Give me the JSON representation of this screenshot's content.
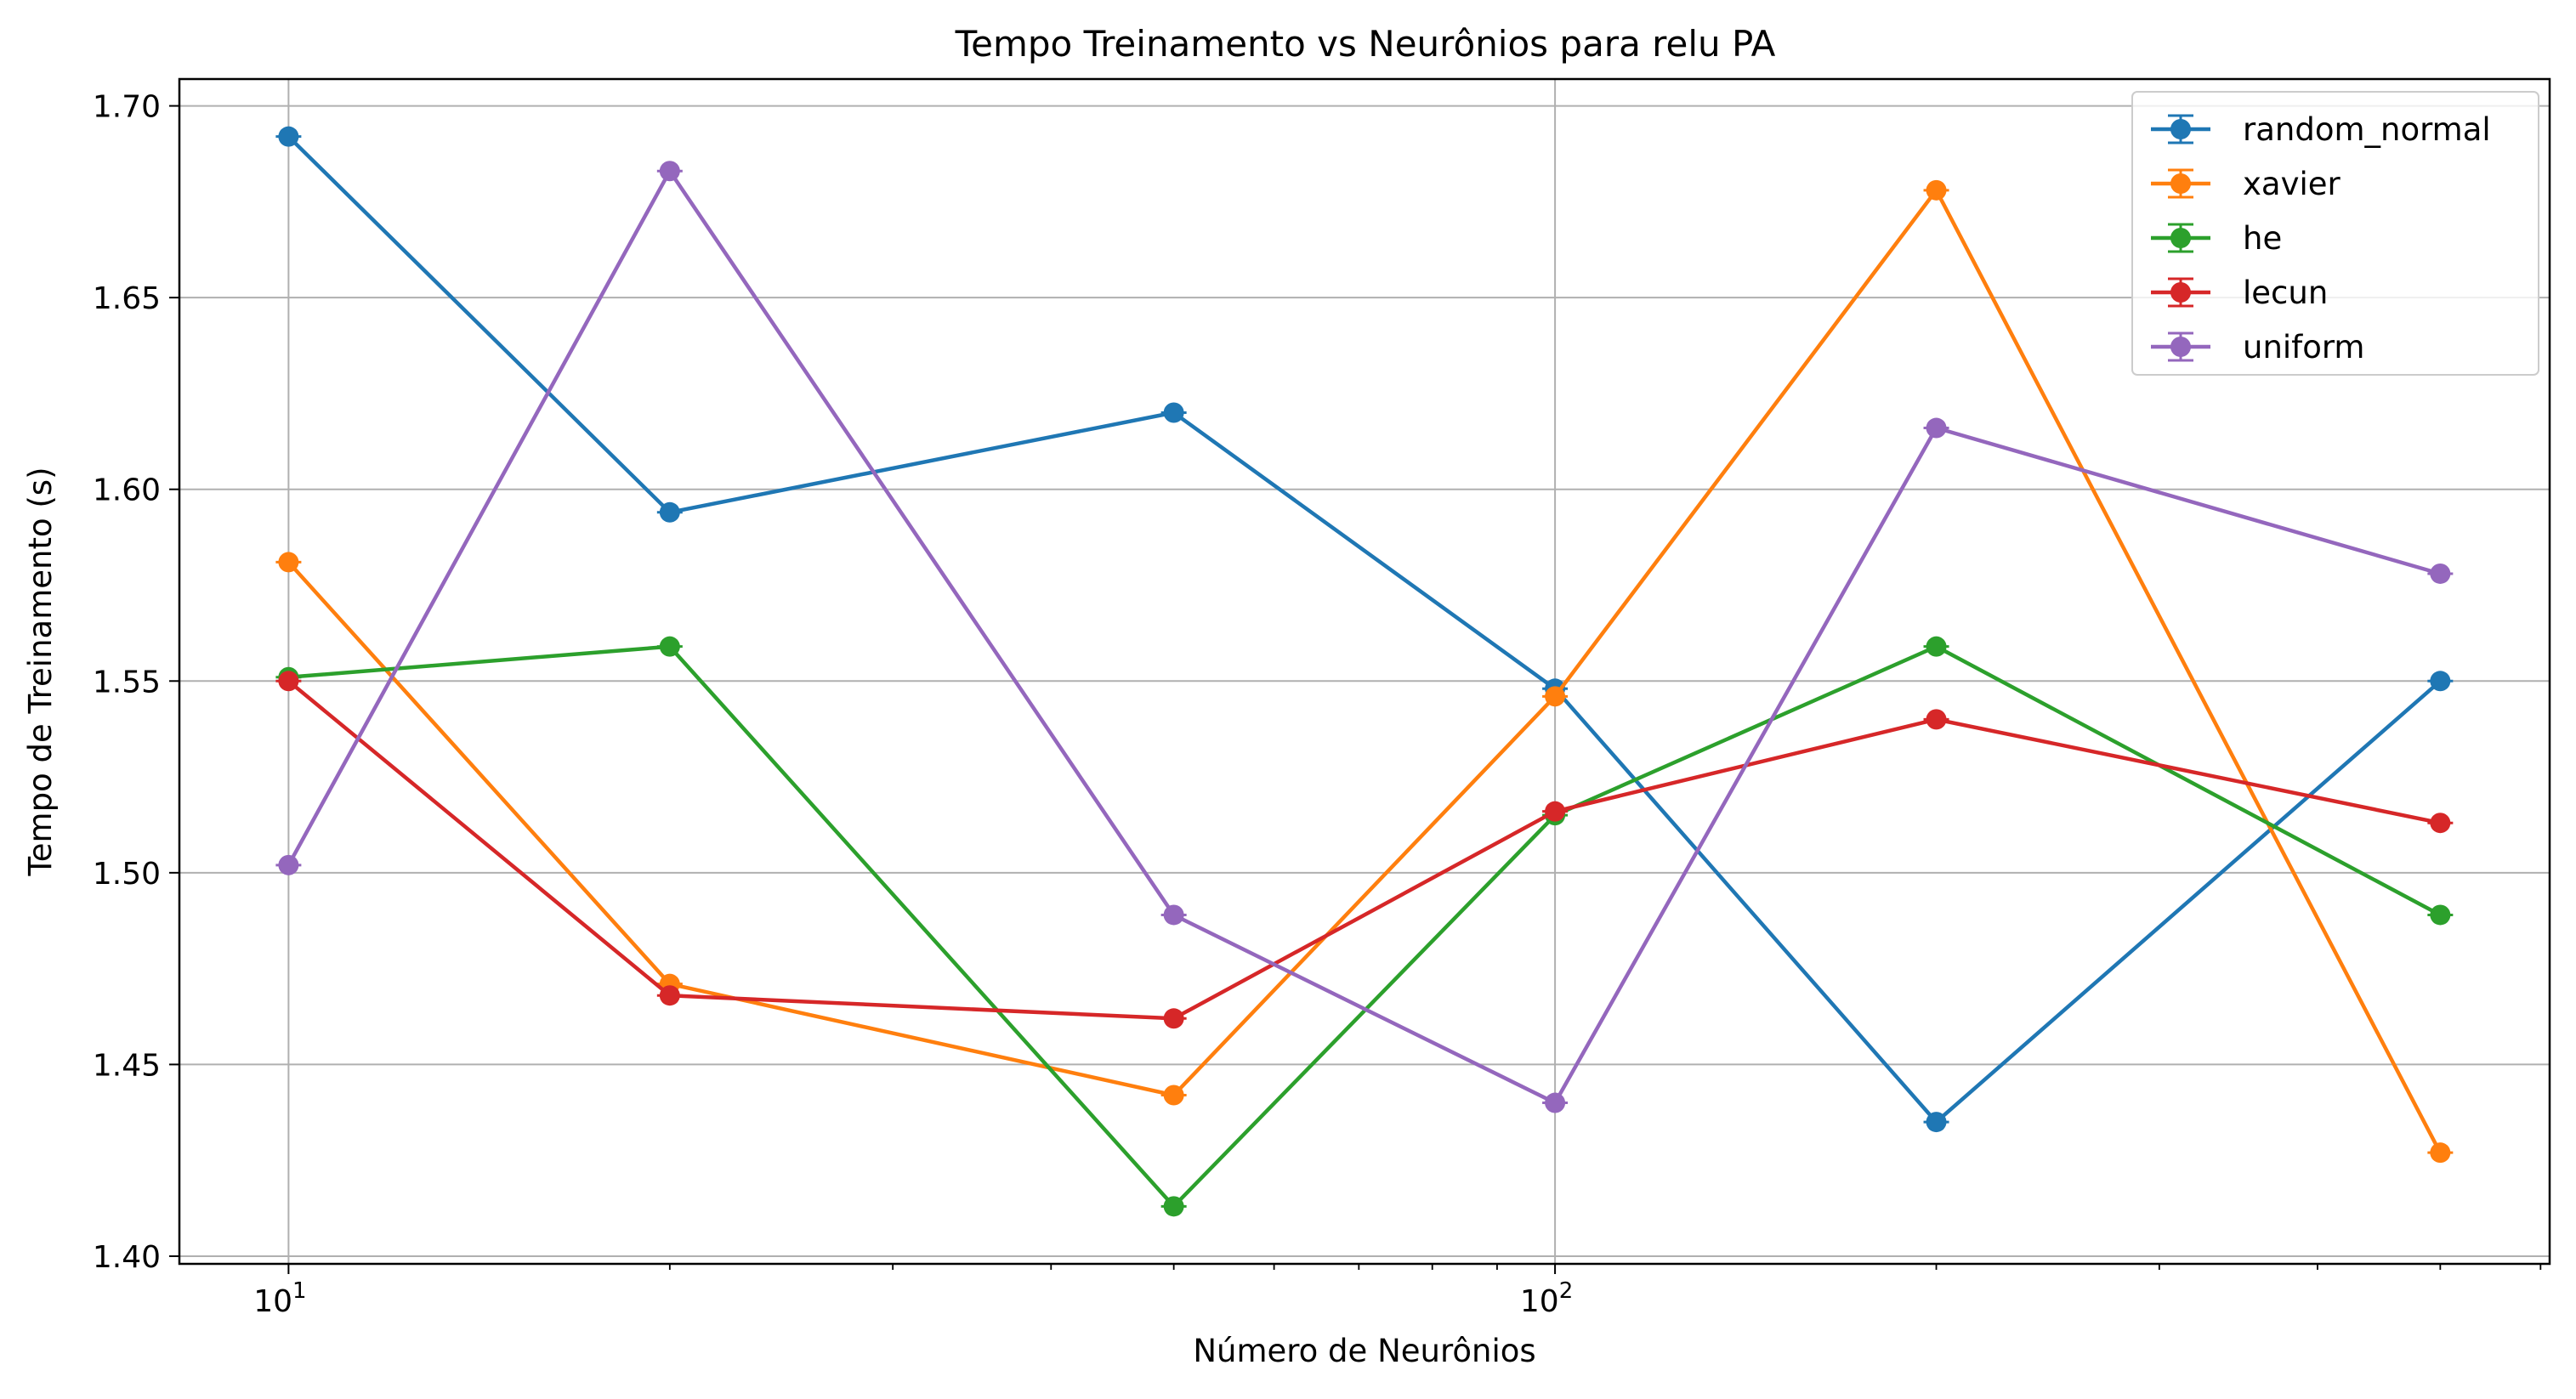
{
  "chart_data": {
    "type": "line",
    "title": "Tempo Treinamento vs Neurônios para relu PA",
    "xlabel": "Número de Neurônios",
    "ylabel": "Tempo de Treinamento (s)",
    "x_scale": "log",
    "xlim": [
      8.2,
      610
    ],
    "ylim": [
      1.398,
      1.707
    ],
    "x": [
      10,
      20,
      50,
      100,
      200,
      500
    ],
    "x_major_ticks": [
      {
        "value": 10,
        "base": "10",
        "exp": "1"
      },
      {
        "value": 100,
        "base": "10",
        "exp": "2"
      }
    ],
    "x_minor_ticks": [
      20,
      30,
      40,
      50,
      60,
      70,
      80,
      90,
      200,
      300,
      400,
      500,
      600
    ],
    "y_ticks": [
      {
        "value": 1.4,
        "label": "1.40"
      },
      {
        "value": 1.45,
        "label": "1.45"
      },
      {
        "value": 1.5,
        "label": "1.50"
      },
      {
        "value": 1.55,
        "label": "1.55"
      },
      {
        "value": 1.6,
        "label": "1.60"
      },
      {
        "value": 1.65,
        "label": "1.65"
      },
      {
        "value": 1.7,
        "label": "1.70"
      }
    ],
    "grid": true,
    "legend_position": "top-right",
    "error_bars": true,
    "series": [
      {
        "name": "random_normal",
        "color": "#1f77b4",
        "values": [
          1.692,
          1.594,
          1.62,
          1.548,
          1.435,
          1.55
        ]
      },
      {
        "name": "xavier",
        "color": "#ff7f0e",
        "values": [
          1.581,
          1.471,
          1.442,
          1.546,
          1.678,
          1.427
        ]
      },
      {
        "name": "he",
        "color": "#2ca02c",
        "values": [
          1.551,
          1.559,
          1.413,
          1.515,
          1.559,
          1.489
        ]
      },
      {
        "name": "lecun",
        "color": "#d62728",
        "values": [
          1.55,
          1.468,
          1.462,
          1.516,
          1.54,
          1.513
        ]
      },
      {
        "name": "uniform",
        "color": "#9467bd",
        "values": [
          1.502,
          1.683,
          1.489,
          1.44,
          1.616,
          1.578
        ]
      }
    ]
  }
}
